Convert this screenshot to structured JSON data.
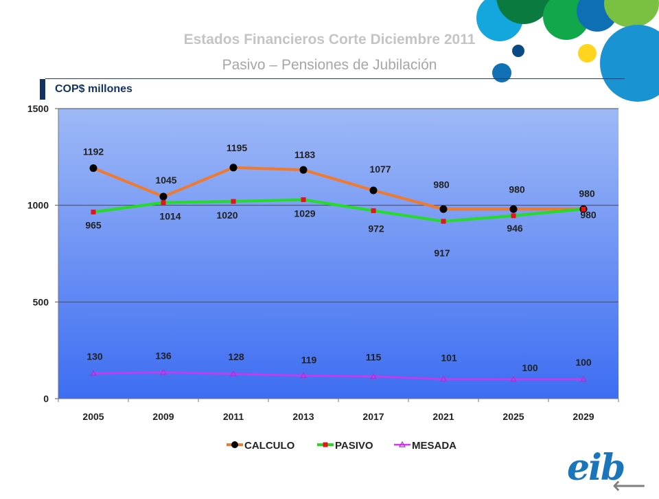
{
  "header": {
    "title": "Estados Financieros Corte Diciembre 2011",
    "subtitle": "Pasivo – Pensiones de Jubilación",
    "unit_label": "COP$ millones"
  },
  "logo": {
    "text": "eib"
  },
  "nav": {
    "back_icon": "arrow-left-icon"
  },
  "colors": {
    "calculo": "#f07a2a",
    "pasivo": "#22dd22",
    "mesada": "#d633f0",
    "plot_top": "#9fb9f6",
    "plot_bottom": "#3d6df2"
  },
  "chart_data": {
    "type": "line",
    "categories": [
      "2005",
      "2009",
      "2011",
      "2013",
      "2017",
      "2021",
      "2025",
      "2029"
    ],
    "series": [
      {
        "name": "CALCULO",
        "values": [
          1192,
          1045,
          1195,
          1183,
          1077,
          980,
          980,
          980
        ]
      },
      {
        "name": "PASIVO",
        "values": [
          965,
          1014,
          1020,
          1029,
          972,
          917,
          946,
          980
        ]
      },
      {
        "name": "MESADA",
        "values": [
          130,
          136,
          128,
          119,
          115,
          101,
          100,
          100
        ]
      }
    ],
    "ylim": [
      0,
      1500
    ],
    "yticks": [
      "0",
      "500",
      "1000",
      "1500"
    ],
    "grid": true,
    "legend": "bottom"
  }
}
